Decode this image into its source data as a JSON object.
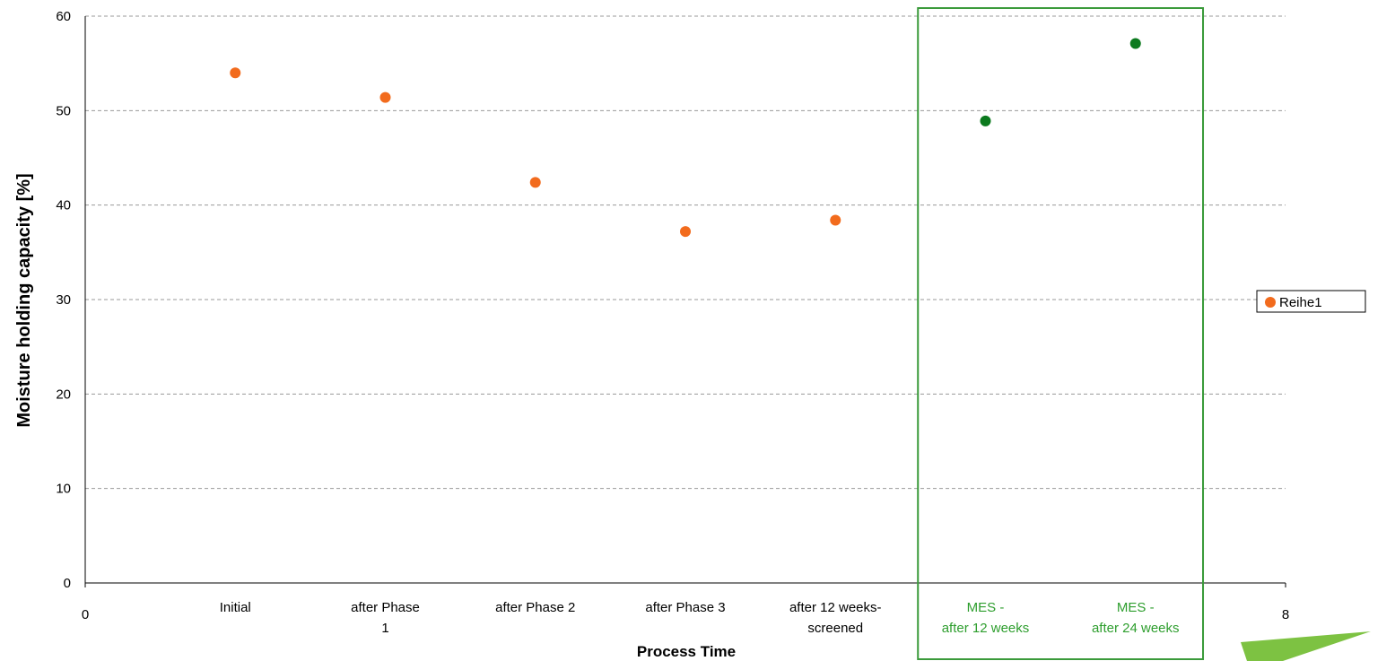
{
  "chart_data": {
    "type": "scatter",
    "xlabel": "Process Time",
    "ylabel": "Moisture holding capacity  [%]",
    "xlim": [
      0,
      8
    ],
    "ylim": [
      0,
      60
    ],
    "x_ticks": [
      "0",
      "8"
    ],
    "y_ticks": [
      "0",
      "10",
      "20",
      "30",
      "40",
      "50",
      "60"
    ],
    "grid": true,
    "legend_position": "right",
    "series": [
      {
        "name": "Reihe1",
        "color": "#f26b1d",
        "x": [
          1,
          2,
          3,
          4,
          5
        ],
        "y": [
          54.0,
          51.4,
          42.4,
          37.2,
          38.4
        ]
      },
      {
        "color": "#0c7a1e",
        "x": [
          6,
          7
        ],
        "y": [
          48.9,
          57.1
        ]
      }
    ],
    "categories": [
      {
        "x": 1,
        "lines": [
          "Initial"
        ],
        "color": "#000000"
      },
      {
        "x": 2,
        "lines": [
          "after Phase",
          "1"
        ],
        "color": "#000000"
      },
      {
        "x": 3,
        "lines": [
          "after Phase 2"
        ],
        "color": "#000000"
      },
      {
        "x": 4,
        "lines": [
          "after Phase 3"
        ],
        "color": "#000000"
      },
      {
        "x": 5,
        "lines": [
          "after 12 weeks-",
          "screened"
        ],
        "color": "#000000"
      },
      {
        "x": 6,
        "lines": [
          "MES -",
          "after 12 weeks"
        ],
        "color": "#2e9e2e"
      },
      {
        "x": 7,
        "lines": [
          "MES -",
          "after 24 weeks"
        ],
        "color": "#2e9e2e"
      }
    ],
    "highlight_box": {
      "x_from": 5.55,
      "x_to": 7.45,
      "color": "#3a9a3a"
    },
    "corner_arrow_color": "#7dc242"
  }
}
